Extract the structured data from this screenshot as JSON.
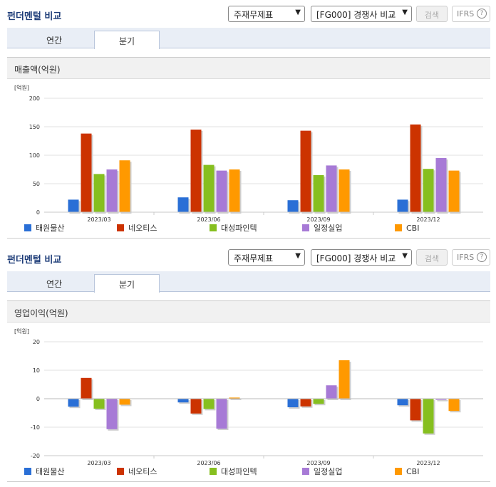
{
  "panels": [
    {
      "title": "펀더멘털 비교",
      "select1": "주재무제표",
      "select2": "[FG000] 경쟁사 비교",
      "search_label": "검색",
      "ifrs_label": "IFRS",
      "help_label": "?",
      "tabs": [
        {
          "label": "연간"
        },
        {
          "label": "분기"
        }
      ],
      "active_tab": 1,
      "chart_title": "매출액(억원)",
      "chart_data": {
        "type": "bar",
        "unit_label": "[억원]",
        "categories": [
          "2023/03",
          "2023/06",
          "2023/09",
          "2023/12"
        ],
        "ylim": [
          0,
          200
        ],
        "yticks": [
          0,
          50,
          100,
          150,
          200
        ],
        "grid": true,
        "legend_position": "bottom",
        "series": [
          {
            "name": "태원물산",
            "color": "#2a6fd6",
            "values": [
              22,
              26,
              21,
              22
            ]
          },
          {
            "name": "네오티스",
            "color": "#cc3300",
            "values": [
              138,
              145,
              143,
              154
            ]
          },
          {
            "name": "대성파인텍",
            "color": "#86bf1f",
            "values": [
              67,
              83,
              65,
              76
            ]
          },
          {
            "name": "일정실업",
            "color": "#a77ad6",
            "values": [
              75,
              73,
              82,
              95
            ]
          },
          {
            "name": "CBI",
            "color": "#ff9900",
            "values": [
              91,
              75,
              75,
              73
            ]
          }
        ]
      }
    },
    {
      "title": "펀더멘털 비교",
      "select1": "주재무제표",
      "select2": "[FG000] 경쟁사 비교",
      "search_label": "검색",
      "ifrs_label": "IFRS",
      "help_label": "?",
      "tabs": [
        {
          "label": "연간"
        },
        {
          "label": "분기"
        }
      ],
      "active_tab": 1,
      "chart_title": "영업이익(억원)",
      "chart_data": {
        "type": "bar",
        "unit_label": "[억원]",
        "categories": [
          "2023/03",
          "2023/06",
          "2023/09",
          "2023/12"
        ],
        "ylim": [
          -20,
          20
        ],
        "yticks": [
          -20,
          -10,
          0,
          10,
          20
        ],
        "grid": true,
        "legend_position": "bottom",
        "series": [
          {
            "name": "태원물산",
            "color": "#2a6fd6",
            "values": [
              -2.8,
              -1.3,
              -3.0,
              -2.3
            ]
          },
          {
            "name": "네오티스",
            "color": "#cc3300",
            "values": [
              7.3,
              -5.2,
              -2.7,
              -7.6
            ]
          },
          {
            "name": "대성파인텍",
            "color": "#86bf1f",
            "values": [
              -3.5,
              -3.6,
              -1.8,
              -12.2
            ]
          },
          {
            "name": "일정실업",
            "color": "#a77ad6",
            "values": [
              -10.7,
              -10.5,
              4.7,
              -0.4
            ]
          },
          {
            "name": "CBI",
            "color": "#ff9900",
            "values": [
              -2.1,
              0.4,
              13.5,
              -4.3
            ]
          }
        ]
      }
    }
  ]
}
